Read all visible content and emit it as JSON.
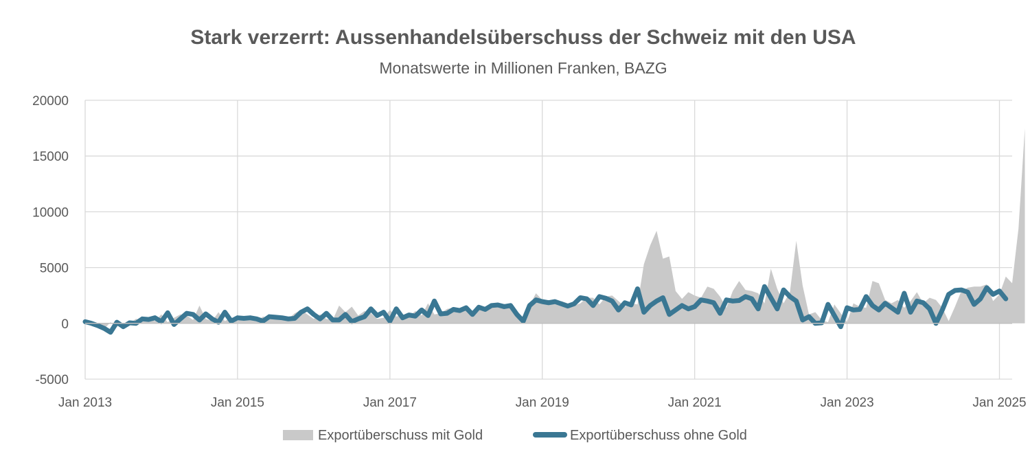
{
  "chart_data": {
    "type": "area",
    "title": "Stark verzerrt: Aussenhandelsüberschuss der Schweiz mit den USA",
    "subtitle": "Monatswerte in Millionen Franken, BAZG",
    "xlabel": "",
    "ylabel": "",
    "ylim": [
      -5000,
      20000
    ],
    "y_ticks": [
      "20000",
      "15000",
      "10000",
      "5000",
      "0",
      "-5000"
    ],
    "x_ticks": [
      "Jan 2013",
      "Jan 2015",
      "Jan 2017",
      "Jan 2019",
      "Jan 2021",
      "Jan 2023",
      "Jan 2025"
    ],
    "x_start": "Jan 2013",
    "x_end": "Feb 2025",
    "grid": true,
    "legend_position": "bottom",
    "colors": {
      "mit_gold": "#c9c9c9",
      "ohne_gold": "#3a7793",
      "grid": "#d9d9d9",
      "axis": "#bfbfbf",
      "text": "#595959"
    },
    "series": [
      {
        "name": "Exportüberschuss mit Gold",
        "kind": "area",
        "values": [
          200,
          0,
          -200,
          -500,
          100,
          -300,
          0,
          0,
          400,
          300,
          500,
          200,
          800,
          100,
          500,
          800,
          700,
          300,
          1600,
          400,
          200,
          1000,
          200,
          500,
          500,
          400,
          300,
          200,
          600,
          500,
          400,
          300,
          400,
          900,
          1200,
          800,
          400,
          800,
          400,
          300,
          1600,
          1000,
          1500,
          700,
          1100,
          900,
          400,
          500,
          1200,
          600,
          800,
          600,
          1100,
          700,
          1800,
          800,
          900,
          1300,
          1400,
          1200,
          1500,
          800,
          1400,
          1300,
          1600,
          1600,
          1500,
          1700,
          1000,
          500,
          1600,
          2700,
          2100,
          2000,
          1900,
          2000,
          1800,
          1600,
          1800,
          2300,
          2300,
          1700,
          2400,
          2500,
          2000,
          1500,
          1800,
          1700,
          5300,
          7000,
          8300,
          5800,
          6000,
          2900,
          2200,
          2800,
          2500,
          2300,
          3300,
          3100,
          2400,
          1400,
          2900,
          3800,
          3000,
          2900,
          2700,
          1800,
          4900,
          3100,
          1800,
          2800,
          7400,
          3400,
          800,
          1000,
          300,
          100,
          1700,
          900,
          100,
          1800,
          1500,
          1400,
          3800,
          3600,
          2100,
          1800,
          2100,
          1400,
          2000,
          2800,
          1800,
          2300,
          2100,
          1400,
          200,
          1500,
          2900,
          3200,
          3300,
          3300,
          3500,
          2000,
          2600,
          4200,
          3600,
          8500,
          17500
        ]
      },
      {
        "name": "Exportüberschuss ohne Gold",
        "kind": "line",
        "values": [
          150,
          0,
          -200,
          -450,
          -800,
          100,
          -300,
          50,
          0,
          400,
          350,
          500,
          150,
          950,
          -100,
          400,
          900,
          800,
          300,
          850,
          400,
          100,
          1000,
          200,
          500,
          450,
          500,
          400,
          200,
          600,
          550,
          500,
          400,
          450,
          1000,
          1300,
          800,
          400,
          900,
          300,
          300,
          800,
          150,
          400,
          600,
          1300,
          700,
          1000,
          200,
          1300,
          500,
          750,
          650,
          1200,
          700,
          2000,
          850,
          900,
          1250,
          1150,
          1400,
          800,
          1450,
          1250,
          1600,
          1650,
          1500,
          1600,
          800,
          200,
          1600,
          2100,
          1950,
          1850,
          1950,
          1750,
          1550,
          1750,
          2300,
          2200,
          1600,
          2400,
          2250,
          2000,
          1200,
          1850,
          1650,
          3100,
          1000,
          1600,
          2000,
          2300,
          800,
          1200,
          1600,
          1300,
          1500,
          2100,
          2000,
          1850,
          900,
          2100,
          2000,
          2050,
          2400,
          2200,
          1300,
          3300,
          2300,
          1300,
          3000,
          2400,
          2000,
          300,
          600,
          0,
          50,
          1700,
          700,
          -300,
          1400,
          1200,
          1250,
          2400,
          1600,
          1200,
          1800,
          1400,
          1000,
          2700,
          1000,
          2000,
          1850,
          1300,
          0,
          1200,
          2600,
          2950,
          3000,
          2800,
          1700,
          2200,
          3200,
          2600,
          2900,
          2200
        ]
      }
    ]
  }
}
